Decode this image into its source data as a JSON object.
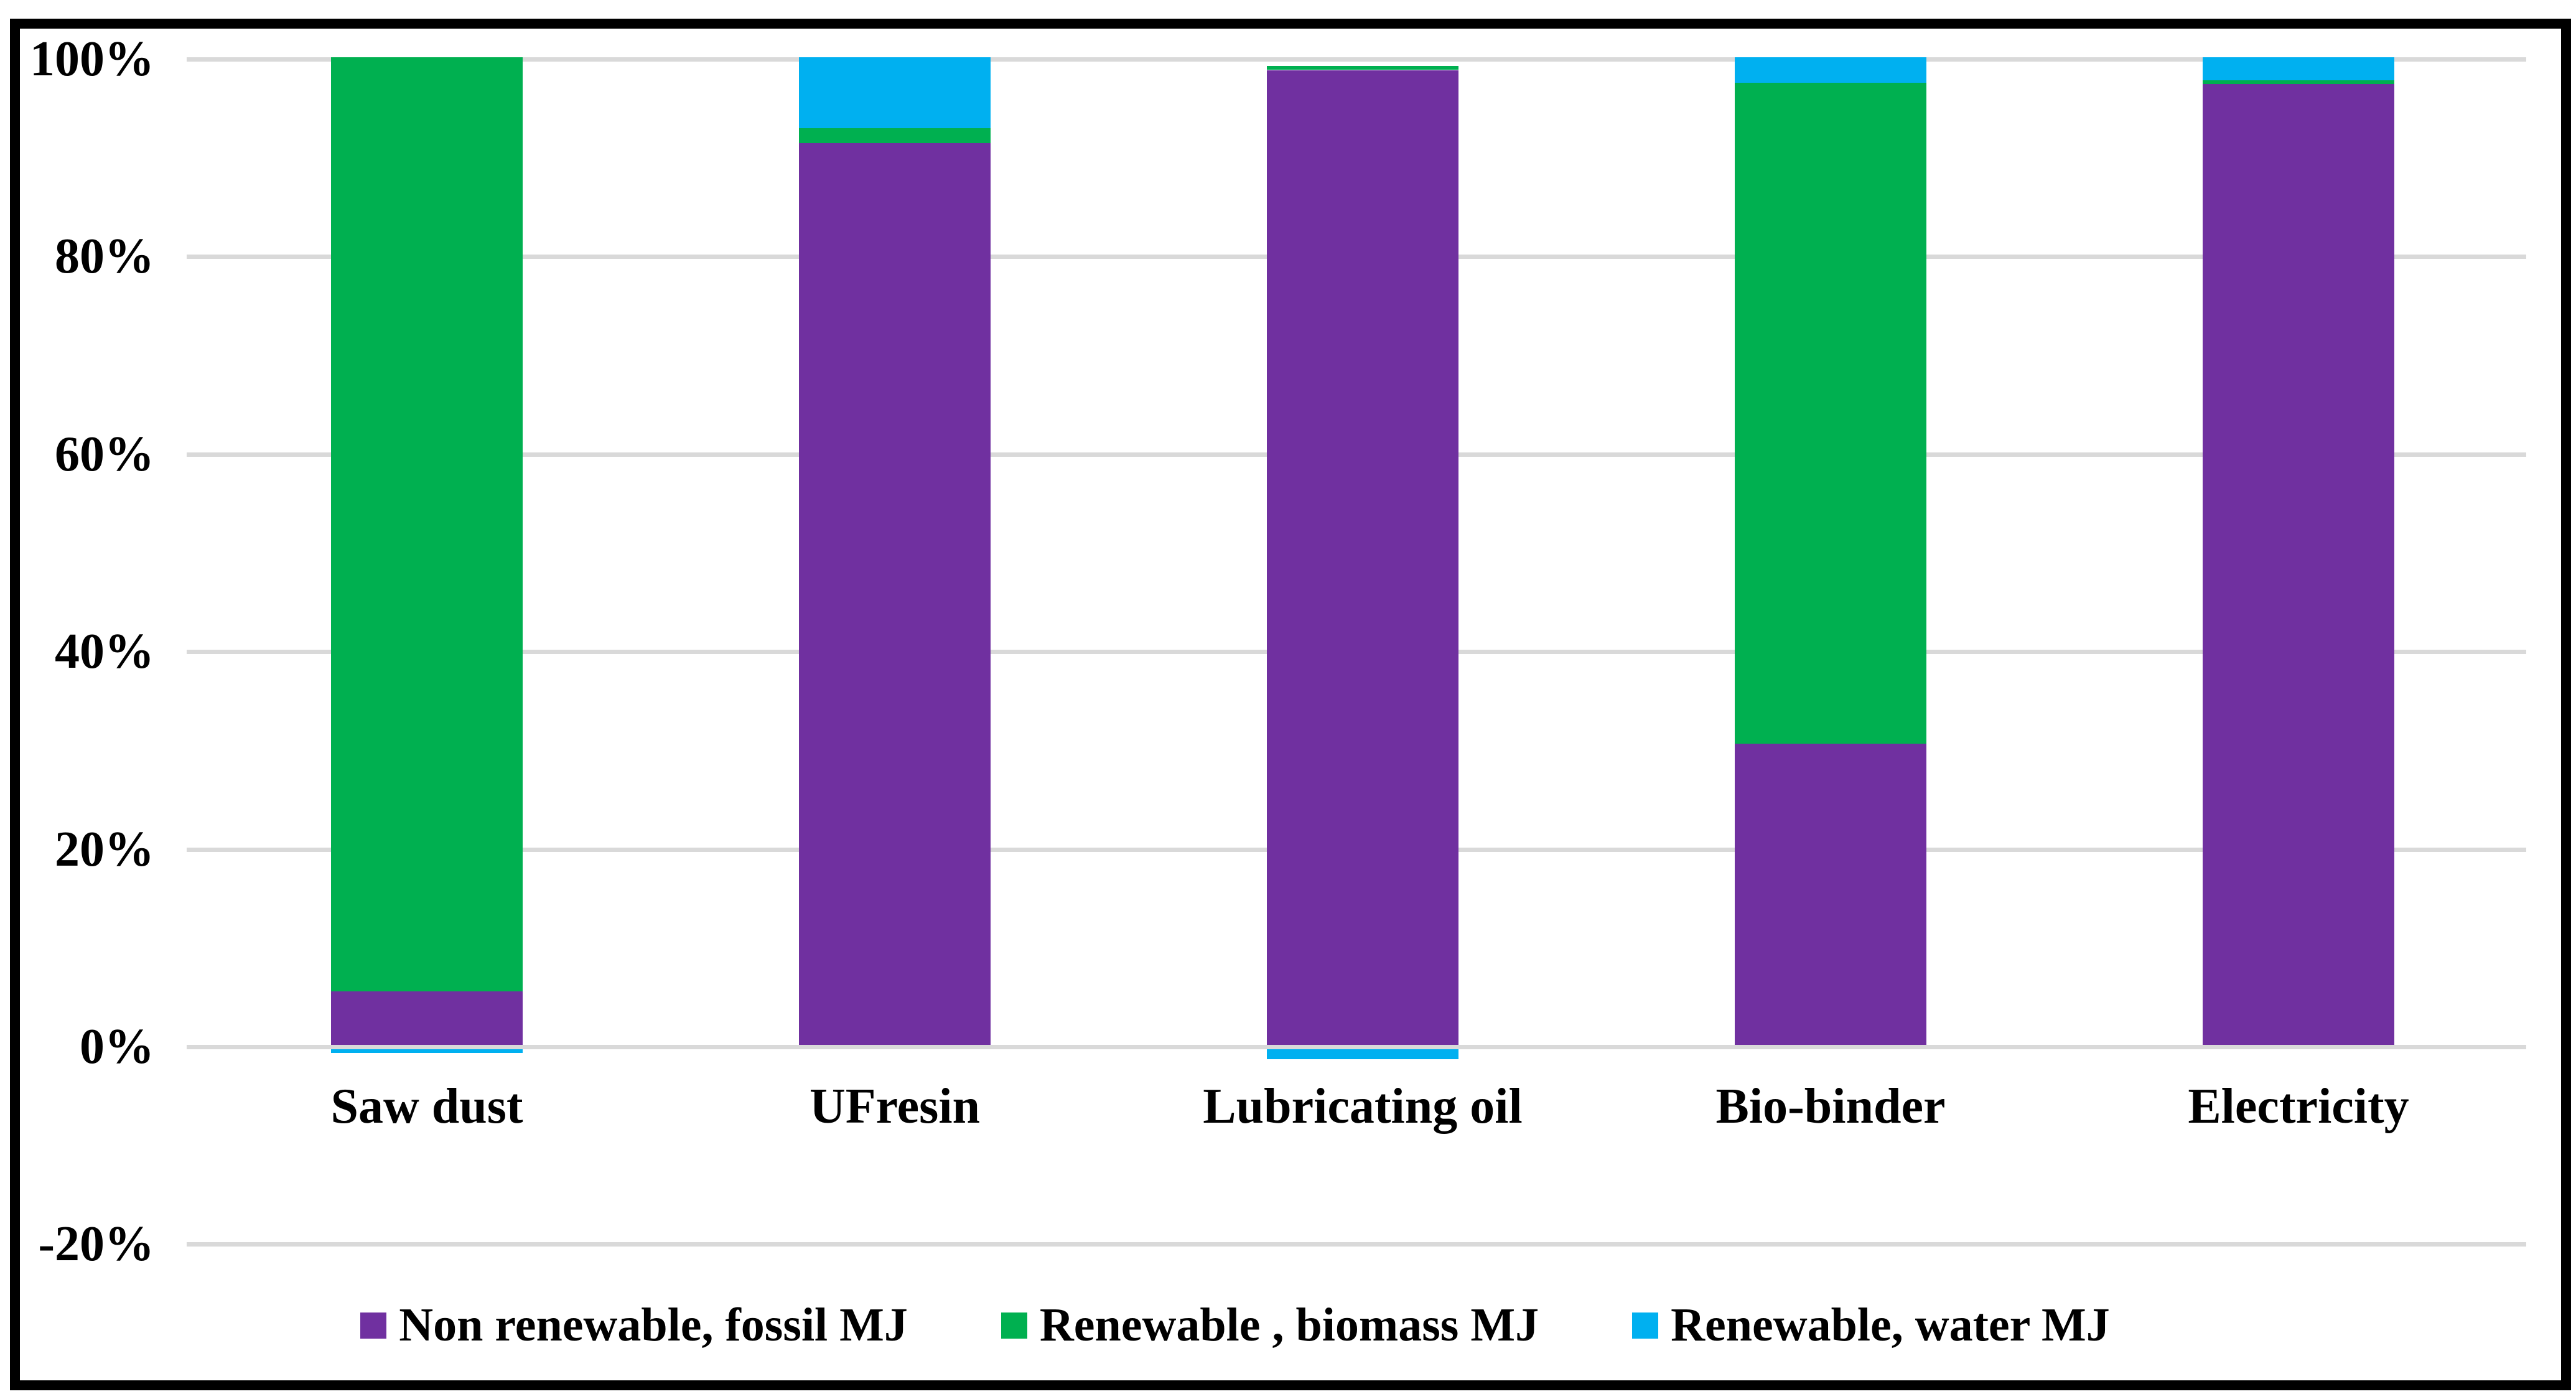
{
  "figure": {
    "background_color": "#FFFFFF",
    "border_color": "#000000",
    "text_color": "#000000"
  },
  "chart_data": {
    "type": "bar",
    "stacked": "100%",
    "title": "",
    "xlabel": "",
    "ylabel": "",
    "categories": [
      "Saw dust",
      "UFresin",
      "Lubricating oil",
      "Bio-binder",
      "Electricity"
    ],
    "series": [
      {
        "name": "Non renewable, fossil MJ",
        "color": "#7030A0",
        "values": [
          5.4,
          91.3,
          98.7,
          30.5,
          97.3
        ]
      },
      {
        "name": "Renewable , biomass MJ",
        "color": "#00B050",
        "values": [
          94.6,
          1.5,
          0.4,
          66.9,
          0.4
        ]
      },
      {
        "name": "Renewable, water MJ",
        "color": "#00B0F0",
        "values": [
          -0.4,
          7.2,
          -1.0,
          2.6,
          2.3
        ]
      }
    ],
    "y_axis": {
      "ticks": [
        "100%",
        "80%",
        "60%",
        "40%",
        "20%",
        "0%",
        "-20%"
      ],
      "tick_values": [
        100,
        80,
        60,
        40,
        20,
        0,
        -20
      ],
      "min": -20,
      "max": 100
    },
    "gridlines": {
      "on": true,
      "color": "#D9D9D9"
    },
    "legend": {
      "position": "bottom",
      "entries": [
        "Non renewable, fossil MJ",
        "Renewable , biomass MJ",
        "Renewable, water MJ"
      ]
    }
  }
}
